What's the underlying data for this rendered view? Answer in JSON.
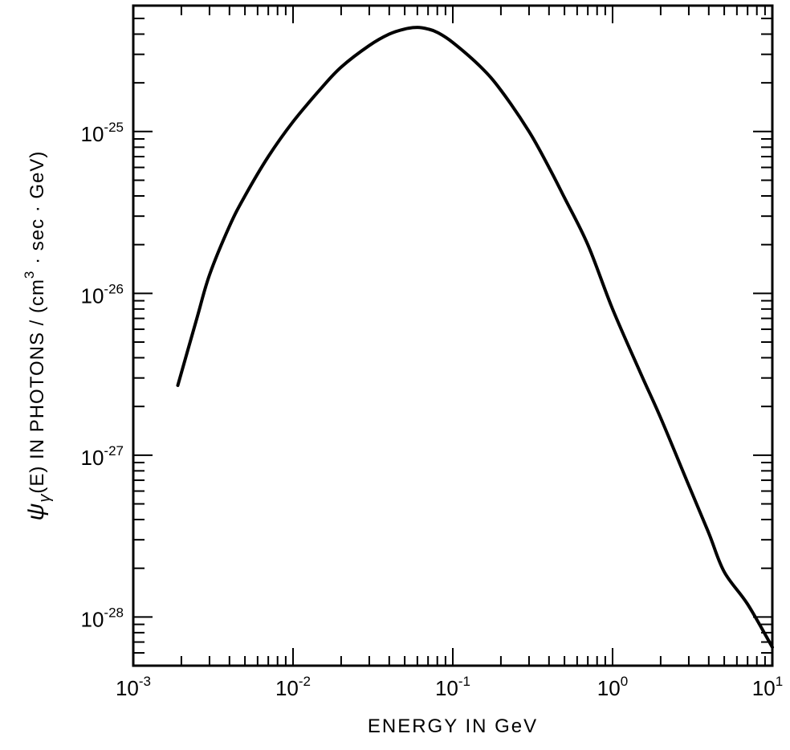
{
  "chart_data": {
    "type": "line",
    "title": "",
    "xlabel": "ENERGY IN GeV",
    "ylabel": {
      "psi": "ψ",
      "sub": "γ",
      "mid": "(E) IN PHOTONS / (cm",
      "sup": "3",
      "tail": " · sec · GeV)"
    },
    "x_scale": "log",
    "y_scale": "log",
    "xlim": [
      0.001,
      10
    ],
    "ylim": [
      5e-29,
      6e-25
    ],
    "x_ticks": [
      {
        "base": "10",
        "exp": "-3",
        "value": 0.001
      },
      {
        "base": "10",
        "exp": "-2",
        "value": 0.01
      },
      {
        "base": "10",
        "exp": "-1",
        "value": 0.1
      },
      {
        "base": "10",
        "exp": "0",
        "value": 1
      },
      {
        "base": "10",
        "exp": "1",
        "value": 10
      }
    ],
    "y_ticks": [
      {
        "base": "10",
        "exp": "-25",
        "value": 1e-25
      },
      {
        "base": "10",
        "exp": "-26",
        "value": 1e-26
      },
      {
        "base": "10",
        "exp": "-27",
        "value": 1e-27
      },
      {
        "base": "10",
        "exp": "-28",
        "value": 1e-28
      }
    ],
    "grid": false,
    "series": [
      {
        "x": [
          0.0019,
          0.0025,
          0.003,
          0.004,
          0.005,
          0.007,
          0.01,
          0.015,
          0.02,
          0.03,
          0.04,
          0.05,
          0.06,
          0.07,
          0.08,
          0.1,
          0.15,
          0.2,
          0.3,
          0.4,
          0.5,
          0.7,
          1.0,
          1.5,
          2.0,
          3.0,
          4.0,
          5.0,
          7.0,
          10.0
        ],
        "y": [
          2.7e-27,
          7e-27,
          1.3e-26,
          2.6e-26,
          4e-26,
          7e-26,
          1.15e-25,
          1.85e-25,
          2.5e-25,
          3.4e-25,
          4e-25,
          4.3e-25,
          4.4e-25,
          4.3e-25,
          4.1e-25,
          3.55e-25,
          2.5e-25,
          1.8e-25,
          1e-25,
          6e-26,
          3.9e-26,
          2e-26,
          8e-27,
          3.2e-27,
          1.7e-27,
          6.5e-28,
          3.3e-28,
          1.9e-28,
          1.2e-28,
          6.5e-29
        ]
      }
    ]
  }
}
